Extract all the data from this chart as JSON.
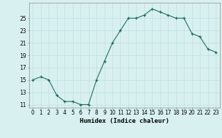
{
  "x": [
    0,
    1,
    2,
    3,
    4,
    5,
    6,
    7,
    8,
    9,
    10,
    11,
    12,
    13,
    14,
    15,
    16,
    17,
    18,
    19,
    20,
    21,
    22,
    23
  ],
  "y": [
    15.0,
    15.5,
    15.0,
    12.5,
    11.5,
    11.5,
    11.0,
    11.0,
    15.0,
    18.0,
    21.0,
    23.0,
    25.0,
    25.0,
    25.5,
    26.5,
    26.0,
    25.5,
    25.0,
    25.0,
    22.5,
    22.0,
    20.0,
    19.5
  ],
  "line_color": "#1a6b5a",
  "bg_color": "#d8f0f0",
  "grid_color": "#c0dede",
  "xlabel": "Humidex (Indice chaleur)",
  "ylim": [
    10.5,
    27.5
  ],
  "yticks": [
    11,
    13,
    15,
    17,
    19,
    21,
    23,
    25
  ],
  "xlim": [
    -0.5,
    23.5
  ],
  "label_fontsize": 6.5,
  "tick_fontsize": 5.5
}
